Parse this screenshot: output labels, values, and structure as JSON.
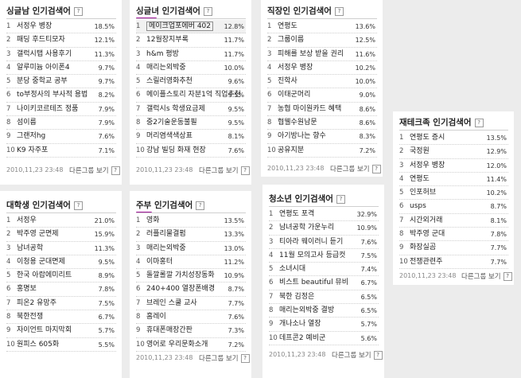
{
  "footer_date": "2010,11,23 23:48",
  "more_label": "다른그룹 보기",
  "help_icon": "?",
  "panels": [
    {
      "title": "싱글남 인기검색어",
      "items": [
        {
          "rank": "1",
          "term": "서정우 병장",
          "pct": "18.5%"
        },
        {
          "rank": "2",
          "term": "패딩 후드티모자",
          "pct": "12.1%"
        },
        {
          "rank": "3",
          "term": "갤럭시탭 사용후기",
          "pct": "11.3%"
        },
        {
          "rank": "4",
          "term": "알루미늄 아이폰4",
          "pct": "9.7%"
        },
        {
          "rank": "5",
          "term": "분당 중학교 공부",
          "pct": "9.7%"
        },
        {
          "rank": "6",
          "term": "to부정사의 부사적 용법",
          "pct": "8.2%"
        },
        {
          "rank": "7",
          "term": "나이키코르테즈 정품",
          "pct": "7.9%"
        },
        {
          "rank": "8",
          "term": "섬이름",
          "pct": "7.9%"
        },
        {
          "rank": "9",
          "term": "그랜저hg",
          "pct": "7.6%"
        },
        {
          "rank": "10",
          "term": "K9 자주포",
          "pct": "7.1%"
        }
      ]
    },
    {
      "title": "싱글녀 인기검색어",
      "items": [
        {
          "rank": "1",
          "term": "메이크업포에버 402",
          "pct": "12.8%"
        },
        {
          "rank": "2",
          "term": "12월장지부록",
          "pct": "11.7%"
        },
        {
          "rank": "3",
          "term": "h&m 평방",
          "pct": "11.7%"
        },
        {
          "rank": "4",
          "term": "매리는외박중",
          "pct": "10.0%"
        },
        {
          "rank": "5",
          "term": "스릴러영화추천",
          "pct": "9.6%"
        },
        {
          "rank": "6",
          "term": "메이플스토리 자분1억 직업추천",
          "pct": "9.5%"
        },
        {
          "rank": "7",
          "term": "갤럭시s 학생요금제",
          "pct": "9.5%"
        },
        {
          "rank": "8",
          "term": "중2기술운동불필",
          "pct": "9.5%"
        },
        {
          "rank": "9",
          "term": "머리염색색상표",
          "pct": "8.1%"
        },
        {
          "rank": "10",
          "term": "강남 빌딩 화재 현장",
          "pct": "7.6%"
        }
      ]
    },
    {
      "title": "직장인 인기검색어",
      "items": [
        {
          "rank": "1",
          "term": "연평도",
          "pct": "13.6%"
        },
        {
          "rank": "2",
          "term": "그룹이름",
          "pct": "12.5%"
        },
        {
          "rank": "3",
          "term": "피해를 보상 받을 권리",
          "pct": "11.6%"
        },
        {
          "rank": "4",
          "term": "서정우 병장",
          "pct": "10.2%"
        },
        {
          "rank": "5",
          "term": "진학사",
          "pct": "10.0%"
        },
        {
          "rank": "6",
          "term": "이태군머리",
          "pct": "9.0%"
        },
        {
          "rank": "7",
          "term": "농협 마이원카드 혜택",
          "pct": "8.6%"
        },
        {
          "rank": "8",
          "term": "협웰수원남문",
          "pct": "8.6%"
        },
        {
          "rank": "9",
          "term": "아기방나는 향수",
          "pct": "8.3%"
        },
        {
          "rank": "10",
          "term": "공유지분",
          "pct": "7.2%"
        }
      ]
    },
    {
      "title": "재테크족 인기검색어",
      "items": [
        {
          "rank": "1",
          "term": "연평도 증시",
          "pct": "13.5%"
        },
        {
          "rank": "2",
          "term": "국정원",
          "pct": "12.9%"
        },
        {
          "rank": "3",
          "term": "서정우 병장",
          "pct": "12.0%"
        },
        {
          "rank": "4",
          "term": "연평도",
          "pct": "11.4%"
        },
        {
          "rank": "5",
          "term": "인포허브",
          "pct": "10.2%"
        },
        {
          "rank": "6",
          "term": "usps",
          "pct": "8.7%"
        },
        {
          "rank": "7",
          "term": "시간외거래",
          "pct": "8.1%"
        },
        {
          "rank": "8",
          "term": "박주영 군대",
          "pct": "7.8%"
        },
        {
          "rank": "9",
          "term": "화장실곰",
          "pct": "7.7%"
        },
        {
          "rank": "10",
          "term": "전쟁관련주",
          "pct": "7.7%"
        }
      ]
    },
    {
      "title": "대학생 인기검색어",
      "items": [
        {
          "rank": "1",
          "term": "서정우",
          "pct": "21.0%"
        },
        {
          "rank": "2",
          "term": "박주영 군면제",
          "pct": "15.9%"
        },
        {
          "rank": "3",
          "term": "남녀공학",
          "pct": "11.3%"
        },
        {
          "rank": "4",
          "term": "이청용 군대면제",
          "pct": "9.5%"
        },
        {
          "rank": "5",
          "term": "한국 아랍에미리트",
          "pct": "8.9%"
        },
        {
          "rank": "6",
          "term": "홍명보",
          "pct": "7.8%"
        },
        {
          "rank": "7",
          "term": "피온2 유망주",
          "pct": "7.5%"
        },
        {
          "rank": "8",
          "term": "북한전쟁",
          "pct": "6.7%"
        },
        {
          "rank": "9",
          "term": "자이언트 마지막회",
          "pct": "5.7%"
        },
        {
          "rank": "10",
          "term": "원피스 605화",
          "pct": "5.5%"
        }
      ]
    },
    {
      "title": "주부 인기검색어",
      "items": [
        {
          "rank": "1",
          "term": "영화",
          "pct": "13.5%"
        },
        {
          "rank": "2",
          "term": "러플리물결펌",
          "pct": "13.3%"
        },
        {
          "rank": "3",
          "term": "매리는외박중",
          "pct": "13.0%"
        },
        {
          "rank": "4",
          "term": "이마홍터",
          "pct": "11.2%"
        },
        {
          "rank": "5",
          "term": "돌깔롤깔 가치성장동화",
          "pct": "10.9%"
        },
        {
          "rank": "6",
          "term": "240+400 열장폰배경",
          "pct": "8.7%"
        },
        {
          "rank": "7",
          "term": "브레인 스쿨 교사",
          "pct": "7.7%"
        },
        {
          "rank": "8",
          "term": "홈레이",
          "pct": "7.6%"
        },
        {
          "rank": "9",
          "term": "휴대폰매장간판",
          "pct": "7.3%"
        },
        {
          "rank": "10",
          "term": "영어로 우리문화소개",
          "pct": "7.2%"
        }
      ]
    },
    {
      "title": "청소년 인기검색어",
      "items": [
        {
          "rank": "1",
          "term": "연평도 포격",
          "pct": "32.9%"
        },
        {
          "rank": "2",
          "term": "남녀공학 가운누리",
          "pct": "10.9%"
        },
        {
          "rank": "3",
          "term": "티아라 웨이러니 듣기",
          "pct": "7.6%"
        },
        {
          "rank": "4",
          "term": "11월 모의고사 등급컷",
          "pct": "7.5%"
        },
        {
          "rank": "5",
          "term": "소녀시대",
          "pct": "7.4%"
        },
        {
          "rank": "6",
          "term": "비스트 beautiful 뮤비",
          "pct": "6.7%"
        },
        {
          "rank": "7",
          "term": "북한 김정은",
          "pct": "6.5%"
        },
        {
          "rank": "8",
          "term": "매리는외박중 결방",
          "pct": "6.5%"
        },
        {
          "rank": "9",
          "term": "개나소나 열장",
          "pct": "5.7%"
        },
        {
          "rank": "10",
          "term": "데프콘2 예비군",
          "pct": "5.6%"
        }
      ]
    }
  ]
}
